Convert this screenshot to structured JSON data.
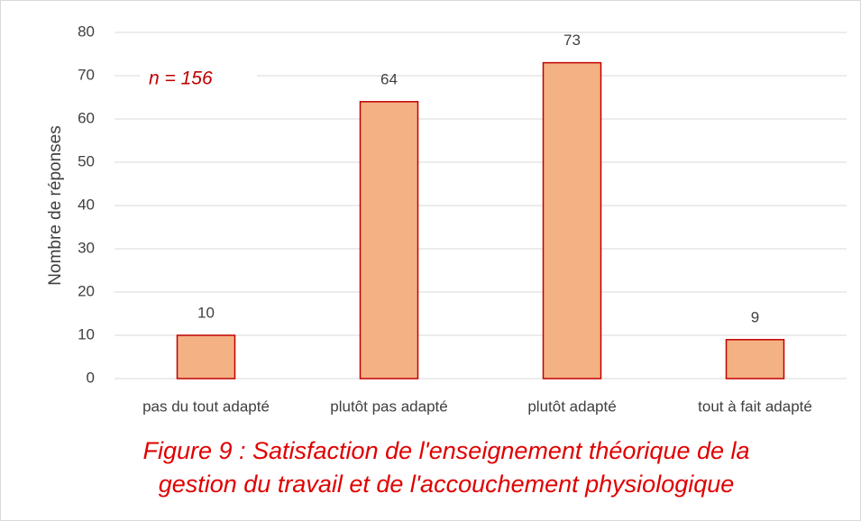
{
  "chart_data": {
    "type": "bar",
    "categories": [
      "pas du tout adapté",
      "plutôt pas adapté",
      "plutôt adapté",
      "tout à fait adapté"
    ],
    "values": [
      10,
      64,
      73,
      9
    ],
    "color": "#f4b183",
    "edge_color": "#c00000",
    "ylabel": "Nombre de réponses",
    "annotation": "n =  156",
    "caption": [
      "Figure 9 : Satisfaction de l'enseignement théorique de la",
      "gestion du travail et de l'accouchement physiologique"
    ],
    "ylim": [
      0,
      80
    ],
    "yticks": [
      0,
      10,
      20,
      30,
      40,
      50,
      60,
      70,
      80
    ],
    "grid": true
  }
}
